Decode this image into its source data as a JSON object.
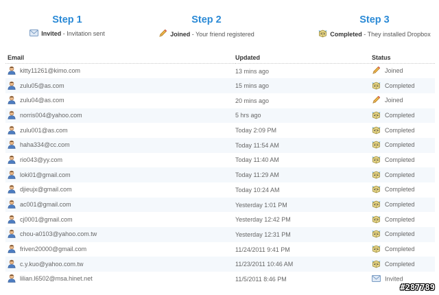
{
  "steps": [
    {
      "title": "Step 1",
      "status": "Invited",
      "desc": "Invitation sent",
      "icon": "envelope-icon"
    },
    {
      "title": "Step 2",
      "status": "Joined",
      "desc": "Your friend registered",
      "icon": "pencil-icon"
    },
    {
      "title": "Step 3",
      "status": "Completed",
      "desc": "They installed Dropbox",
      "icon": "dropbox-box-icon"
    }
  ],
  "table": {
    "headers": {
      "email": "Email",
      "updated": "Updated",
      "status": "Status"
    },
    "rows": [
      {
        "email": "kitty11261@kimo.com",
        "updated": "13 mins ago",
        "status": "Joined"
      },
      {
        "email": "zulu05@as.com",
        "updated": "15 mins ago",
        "status": "Completed"
      },
      {
        "email": "zulu04@as.com",
        "updated": "20 mins ago",
        "status": "Joined"
      },
      {
        "email": "norris004@yahoo.com",
        "updated": "5 hrs ago",
        "status": "Completed"
      },
      {
        "email": "zulu001@as.com",
        "updated": "Today 2:09 PM",
        "status": "Completed"
      },
      {
        "email": "haha334@cc.com",
        "updated": "Today 11:54 AM",
        "status": "Completed"
      },
      {
        "email": "rio043@yy.com",
        "updated": "Today 11:40 AM",
        "status": "Completed"
      },
      {
        "email": "loki01@gmail.com",
        "updated": "Today 11:29 AM",
        "status": "Completed"
      },
      {
        "email": "djieujx@gmail.com",
        "updated": "Today 10:24 AM",
        "status": "Completed"
      },
      {
        "email": "ac001@gmail.com",
        "updated": "Yesterday 1:01 PM",
        "status": "Completed"
      },
      {
        "email": "cj0001@gmail.com",
        "updated": "Yesterday 12:42 PM",
        "status": "Completed"
      },
      {
        "email": "chou-a0103@yahoo.com.tw",
        "updated": "Yesterday 12:31 PM",
        "status": "Completed"
      },
      {
        "email": "friven20000@gmail.com",
        "updated": "11/24/2011 9:41 PM",
        "status": "Completed"
      },
      {
        "email": "c.y.kuo@yahoo.com.tw",
        "updated": "11/23/2011 10:46 AM",
        "status": "Completed"
      },
      {
        "email": "lilian.l6502@msa.hinet.net",
        "updated": "11/5/2011 8:46 PM",
        "status": "Invited"
      }
    ]
  },
  "watermark": "#287789",
  "colors": {
    "accent": "#2b8ad6",
    "row_alt": "#f4f8fc"
  }
}
